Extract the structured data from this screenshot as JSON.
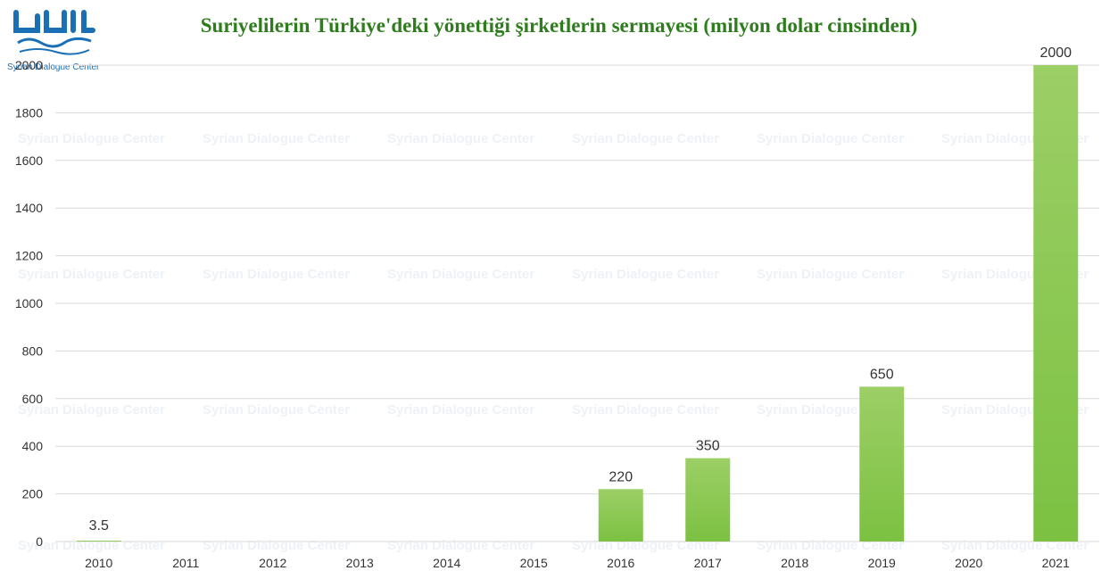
{
  "logo": {
    "name": "Syrian Dialogue Center",
    "color": "#1b6fb5"
  },
  "chart_data": {
    "type": "bar",
    "title": "Suriyelilerin Türkiye'deki yönettiği şirketlerin sermayesi (milyon dolar cinsinden)",
    "xlabel": "",
    "ylabel": "",
    "categories": [
      "2010",
      "2011",
      "2012",
      "2013",
      "2014",
      "2015",
      "2016",
      "2017",
      "2018",
      "2019",
      "2020",
      "2021"
    ],
    "values": [
      3.5,
      null,
      null,
      null,
      null,
      null,
      220,
      350,
      null,
      650,
      null,
      2000
    ],
    "data_labels": [
      "3.5",
      "",
      "",
      "",
      "",
      "",
      "220",
      "350",
      "",
      "650",
      "",
      "2000"
    ],
    "ylim": [
      0,
      2000
    ],
    "yticks": [
      0,
      200,
      400,
      600,
      800,
      1000,
      1200,
      1400,
      1600,
      1800,
      2000
    ],
    "grid": true,
    "legend": "none",
    "bar_color": "#7cc142",
    "title_color": "#2e7d1d"
  }
}
